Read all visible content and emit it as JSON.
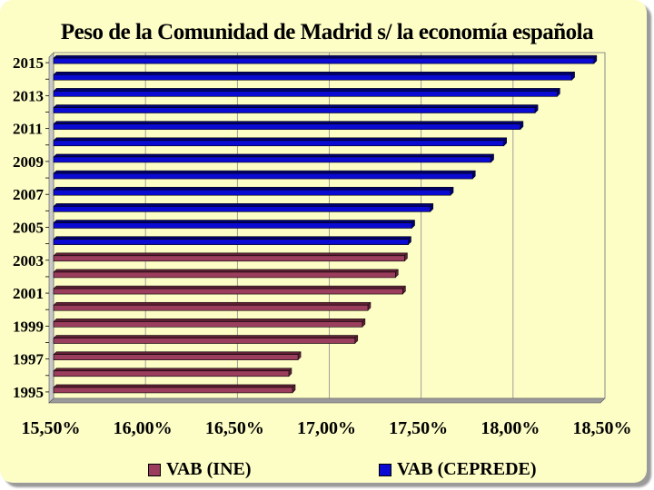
{
  "chart_data": {
    "type": "bar",
    "orientation": "horizontal",
    "title": "Peso de la Comunidad de Madrid s/ la economía española",
    "xlabel": "",
    "ylabel": "",
    "xlim": [
      15.5,
      18.5
    ],
    "x_ticks": [
      "15,50%",
      "16,00%",
      "16,50%",
      "17,00%",
      "17,50%",
      "18,00%",
      "18,50%"
    ],
    "x_tick_values": [
      15.5,
      16.0,
      16.5,
      17.0,
      17.5,
      18.0,
      18.5
    ],
    "categories": [
      "1995",
      "1996",
      "1997",
      "1998",
      "1999",
      "2000",
      "2001",
      "2002",
      "2003",
      "2004",
      "2005",
      "2006",
      "2007",
      "2008",
      "2009",
      "2010",
      "2011",
      "2012",
      "2013",
      "2014",
      "2015"
    ],
    "category_labels": [
      "1995",
      "",
      "1997",
      "",
      "1999",
      "",
      "2001",
      "",
      "2003",
      "",
      "2005",
      "",
      "2007",
      "",
      "2009",
      "",
      "2011",
      "",
      "2013",
      "",
      "2015"
    ],
    "series": [
      {
        "name": "VAB (INE)",
        "color": "#9b3d5c",
        "values": [
          16.8,
          16.78,
          16.83,
          17.14,
          17.18,
          17.21,
          17.4,
          17.36,
          17.41,
          null,
          null,
          null,
          null,
          null,
          null,
          null,
          null,
          null,
          null,
          null,
          null
        ]
      },
      {
        "name": "VAB (CEPREDE)",
        "color": "#0a0ad2",
        "values": [
          null,
          null,
          null,
          null,
          null,
          null,
          null,
          null,
          null,
          17.43,
          17.45,
          17.55,
          17.66,
          17.78,
          17.88,
          17.95,
          18.04,
          18.12,
          18.24,
          18.32,
          18.44
        ]
      }
    ],
    "grid": true,
    "legend_position": "bottom"
  }
}
